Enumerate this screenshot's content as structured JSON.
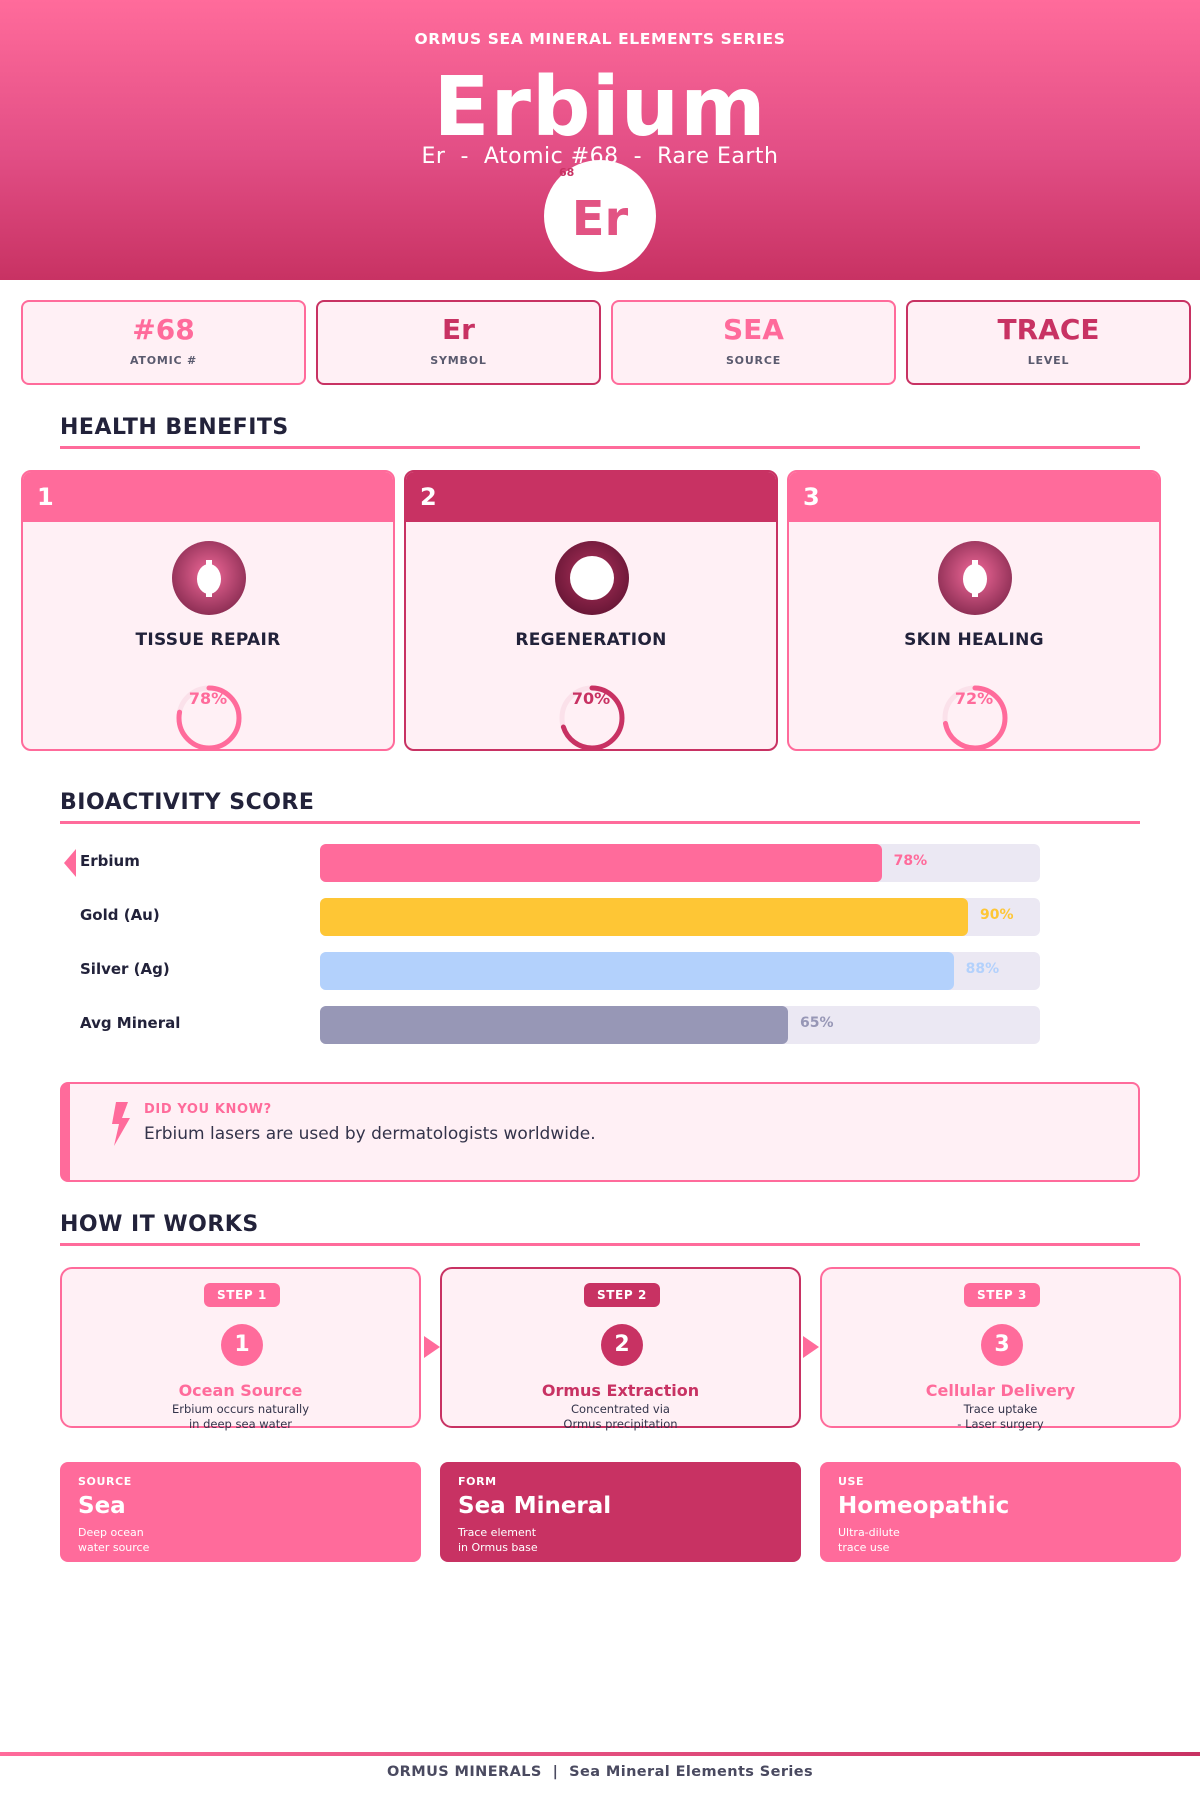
{
  "header": {
    "series": "ORMUS SEA MINERAL ELEMENTS SERIES",
    "name": "Erbium",
    "subtitle": "Er  -  Atomic #68  -  Rare Earth",
    "badge_symbol": "Er",
    "badge_number": "68"
  },
  "stats": [
    {
      "value": "#68",
      "label": "ATOMIC #"
    },
    {
      "value": "Er",
      "label": "SYMBOL"
    },
    {
      "value": "SEA",
      "label": "SOURCE"
    },
    {
      "value": "TRACE",
      "label": "LEVEL"
    }
  ],
  "benefits": {
    "title": "HEALTH BENEFITS",
    "items": [
      {
        "number": "1",
        "title": "TISSUE REPAIR",
        "percent_label": "78%",
        "percent": 78
      },
      {
        "number": "2",
        "title": "REGENERATION",
        "percent_label": "70%",
        "percent": 70
      },
      {
        "number": "3",
        "title": "SKIN HEALING",
        "percent_label": "72%",
        "percent": 72
      }
    ]
  },
  "bioactivity": {
    "title": "BIOACTIVITY SCORE",
    "rows": [
      {
        "label": "Erbium",
        "percent_label": "78%",
        "value": 78,
        "color": "#ff6b9b",
        "highlight": true
      },
      {
        "label": "Gold (Au)",
        "percent_label": "90%",
        "value": 90,
        "color": "#fec635",
        "highlight": false
      },
      {
        "label": "Silver (Ag)",
        "percent_label": "88%",
        "value": 88,
        "color": "#b3d1fc",
        "highlight": false
      },
      {
        "label": "Avg Mineral",
        "percent_label": "65%",
        "value": 65,
        "color": "#9797b6",
        "highlight": false
      }
    ]
  },
  "did_you_know": {
    "title": "DID YOU KNOW?",
    "text": "Erbium lasers are used by dermatologists worldwide."
  },
  "how_it_works": {
    "title": "HOW IT WORKS",
    "steps": [
      {
        "pill": "STEP 1",
        "number": "1",
        "title": "Ocean Source",
        "line1": "Erbium occurs naturally",
        "line2": "in deep sea water"
      },
      {
        "pill": "STEP 2",
        "number": "2",
        "title": "Ormus Extraction",
        "line1": "Concentrated via",
        "line2": "Ormus precipitation"
      },
      {
        "pill": "STEP 3",
        "number": "3",
        "title": "Cellular Delivery",
        "line1": "Trace uptake",
        "line2": "- Laser surgery"
      }
    ]
  },
  "info_cards": [
    {
      "label": "SOURCE",
      "value": "Sea",
      "line1": "Deep ocean",
      "line2": "water source"
    },
    {
      "label": "FORM",
      "value": "Sea Mineral",
      "line1": "Trace element",
      "line2": "in Ormus base"
    },
    {
      "label": "USE",
      "value": "Homeopathic",
      "line1": "Ultra-dilute",
      "line2": "trace use"
    }
  ],
  "footer": {
    "text": "ORMUS MINERALS  |  Sea Mineral Elements Series"
  },
  "colors": {
    "primary": "#ff6b9b",
    "dark": "#c83263"
  }
}
